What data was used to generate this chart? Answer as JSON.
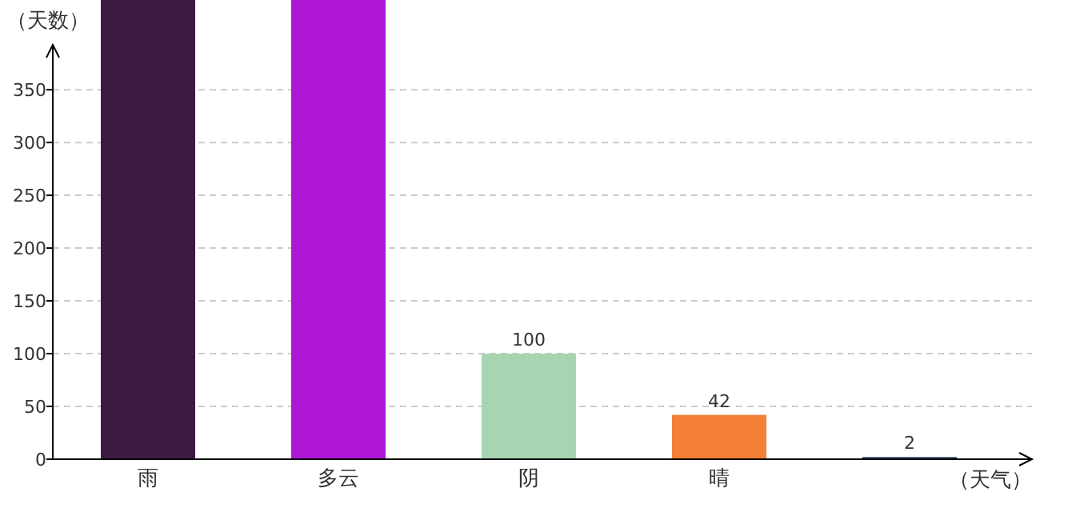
{
  "chart_data": {
    "type": "bar",
    "xlabel": "（天气）",
    "ylabel": "（天数）",
    "categories": [
      "雨",
      "多云",
      "阴",
      "晴",
      null
    ],
    "values": [
      435,
      435,
      100,
      42,
      2
    ],
    "value_labels": [
      null,
      null,
      "100",
      "42",
      "2"
    ],
    "colors": [
      "#3d1a42",
      "#ae16d6",
      "#a8d5b1",
      "#f47f36",
      "#1c3b5c"
    ],
    "ylim": [
      0,
      435
    ],
    "yticks": [
      0,
      50,
      100,
      150,
      200,
      250,
      300,
      350
    ],
    "grid": "y"
  }
}
